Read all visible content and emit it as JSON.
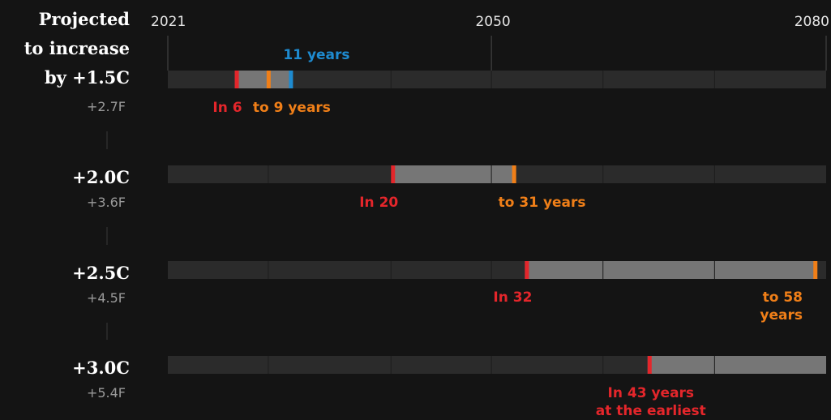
{
  "chart_data": {
    "type": "bar",
    "x_axis": {
      "min": 2021,
      "max": 2080,
      "tick_labels": [
        "2021",
        "2050",
        "2080"
      ]
    },
    "heading": [
      "Projected",
      "to increase",
      "by +1.5C"
    ],
    "rows": [
      {
        "celsius": "+1.5C",
        "fahrenheit": "+2.7F",
        "start_year": 2027,
        "end_year": 2030,
        "extra_year": 2032,
        "start_label": "In 6",
        "end_label": [
          "to 9 years"
        ],
        "extra_label": "11 years"
      },
      {
        "celsius": "+2.0C",
        "fahrenheit": "+3.6F",
        "start_year": 2041,
        "end_year": 2052,
        "start_label": "In 20",
        "end_label": [
          "to 31 years"
        ]
      },
      {
        "celsius": "+2.5C",
        "fahrenheit": "+4.5F",
        "start_year": 2053,
        "end_year": 2079,
        "start_label": "In 32",
        "end_label": [
          "to 58",
          "years"
        ]
      },
      {
        "celsius": "+3.0C",
        "fahrenheit": "+5.4F",
        "start_year": 2064,
        "end_year": 2080,
        "start_label": [
          "In 43 years",
          "at the earliest"
        ]
      }
    ],
    "colors": {
      "background": "#141414",
      "track": "#2b2b2b",
      "range_fill": "#767676",
      "start_marker": "#e4262b",
      "end_marker": "#f07f18",
      "extra_marker": "#1e8bd0",
      "heading_text": "#ffffff",
      "fahrenheit_text": "#9a9a9a",
      "axis_text": "#e6e6e6",
      "gridline": "#4a4a4a"
    }
  }
}
